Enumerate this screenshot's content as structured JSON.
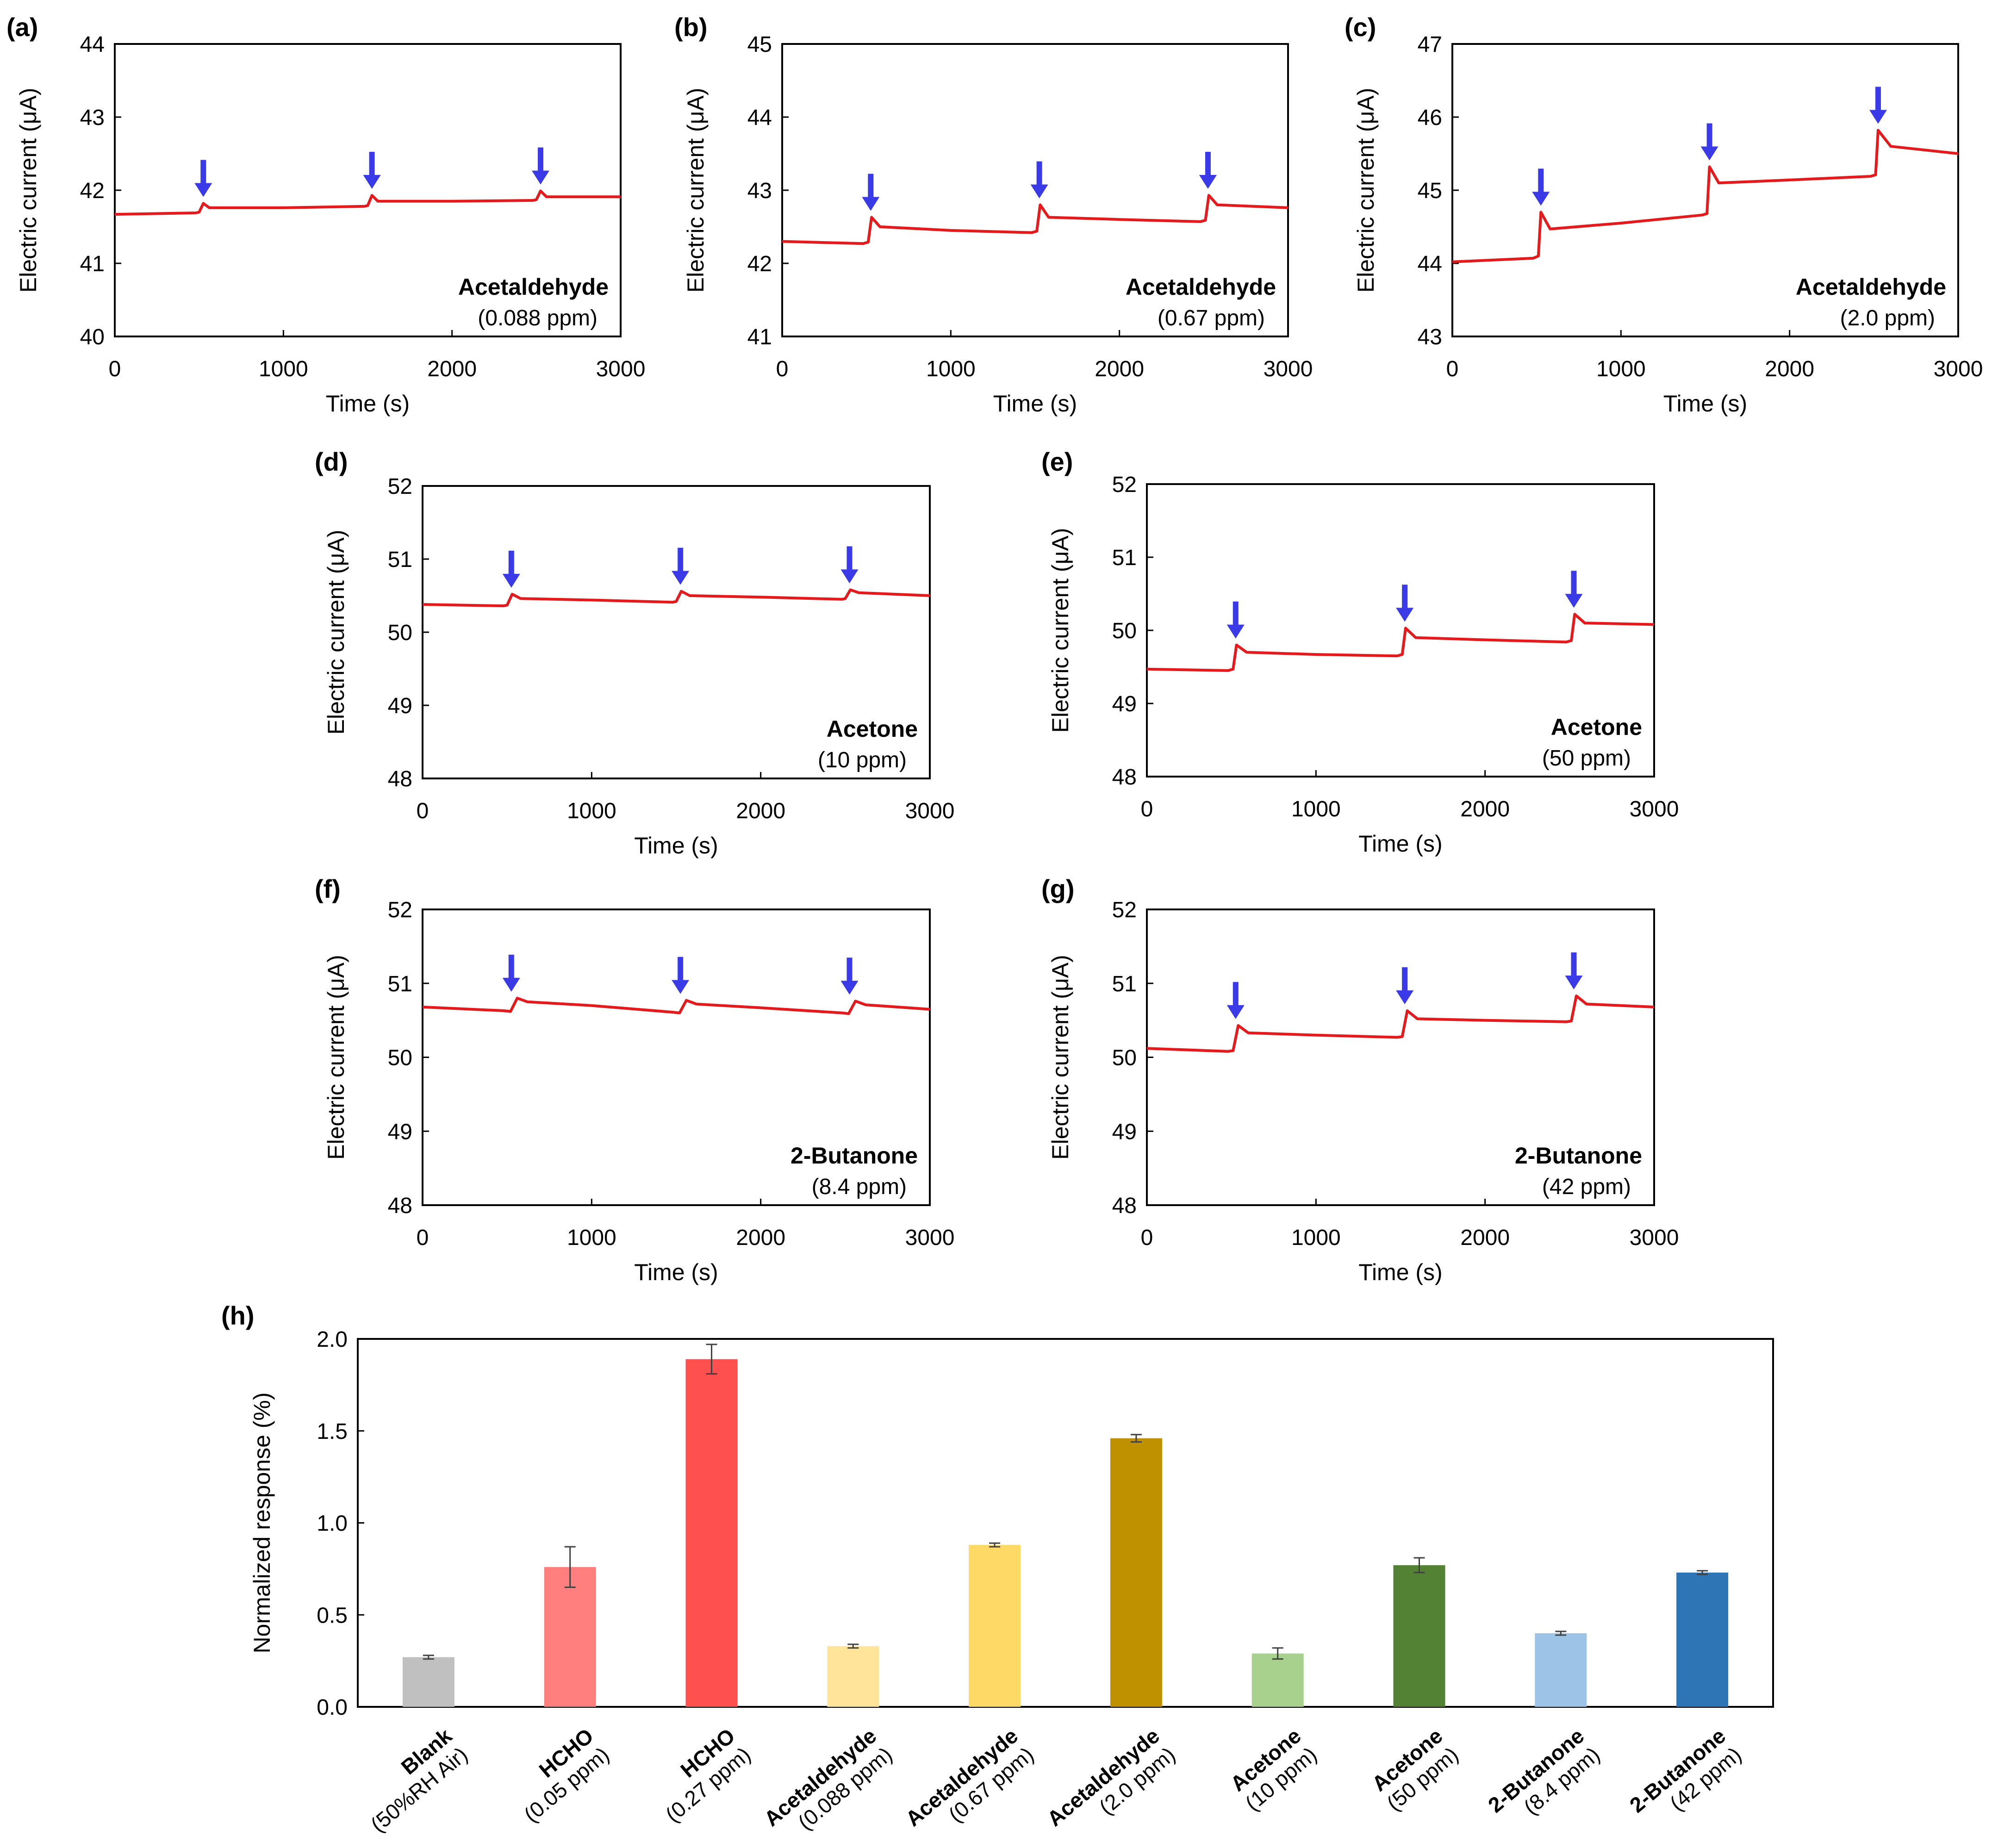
{
  "colors": {
    "trace": "#e41a1c",
    "arrow": "#3a3ae6",
    "frame": "#000000"
  },
  "chart_data": [
    {
      "type": "line",
      "panel": "(a)",
      "xlabel": "Time (s)",
      "ylabel": "Electric current (μA)",
      "xlim": [
        0,
        3000
      ],
      "ylim": [
        40,
        44
      ],
      "xticks": [
        0,
        1000,
        2000,
        3000
      ],
      "yticks": [
        40,
        41,
        42,
        43,
        44
      ],
      "annotation_title": "Acetaldehyde",
      "annotation_sub": "(0.088 ppm)",
      "exposure_times": [
        500,
        1500,
        2500
      ],
      "series": [
        {
          "name": "Acetaldehyde (0.088 ppm)",
          "x": [
            0,
            480,
            500,
            525,
            560,
            1000,
            1480,
            1500,
            1525,
            1560,
            2000,
            2480,
            2500,
            2525,
            2560,
            3000
          ],
          "y": [
            41.67,
            41.69,
            41.7,
            41.82,
            41.76,
            41.76,
            41.78,
            41.79,
            41.93,
            41.85,
            41.85,
            41.86,
            41.87,
            41.99,
            41.91,
            41.91
          ]
        }
      ]
    },
    {
      "type": "line",
      "panel": "(b)",
      "xlabel": "Time (s)",
      "ylabel": "Electric current (μA)",
      "xlim": [
        0,
        3000
      ],
      "ylim": [
        41,
        45
      ],
      "xticks": [
        0,
        1000,
        2000,
        3000
      ],
      "yticks": [
        41,
        42,
        43,
        44,
        45
      ],
      "annotation_title": "Acetaldehyde",
      "annotation_sub": "(0.67 ppm)",
      "exposure_times": [
        500,
        1500,
        2500
      ],
      "series": [
        {
          "name": "Acetaldehyde (0.67 ppm)",
          "x": [
            0,
            480,
            510,
            530,
            580,
            1000,
            1480,
            1510,
            1530,
            1580,
            2000,
            2480,
            2510,
            2530,
            2580,
            3000
          ],
          "y": [
            42.3,
            42.27,
            42.29,
            42.63,
            42.5,
            42.45,
            42.42,
            42.44,
            42.8,
            42.63,
            42.6,
            42.57,
            42.59,
            42.93,
            42.8,
            42.76
          ]
        }
      ]
    },
    {
      "type": "line",
      "panel": "(c)",
      "xlabel": "Time (s)",
      "ylabel": "Electric current (μA)",
      "xlim": [
        0,
        3000
      ],
      "ylim": [
        43,
        47
      ],
      "xticks": [
        0,
        1000,
        2000,
        3000
      ],
      "yticks": [
        43,
        44,
        45,
        46,
        47
      ],
      "annotation_title": "Acetaldehyde",
      "annotation_sub": "(2.0 ppm)",
      "exposure_times": [
        500,
        1500,
        2500
      ],
      "series": [
        {
          "name": "Acetaldehyde (2.0 ppm)",
          "x": [
            0,
            480,
            510,
            525,
            580,
            1000,
            1480,
            1510,
            1525,
            1580,
            2000,
            2480,
            2510,
            2525,
            2600,
            3000
          ],
          "y": [
            44.02,
            44.07,
            44.1,
            44.7,
            44.47,
            44.55,
            44.66,
            44.68,
            45.32,
            45.1,
            45.14,
            45.19,
            45.21,
            45.82,
            45.6,
            45.5
          ]
        }
      ]
    },
    {
      "type": "line",
      "panel": "(d)",
      "xlabel": "Time (s)",
      "ylabel": "Electric current (μA)",
      "xlim": [
        0,
        3000
      ],
      "ylim": [
        48,
        52
      ],
      "xticks": [
        0,
        1000,
        2000,
        3000
      ],
      "yticks": [
        48,
        49,
        50,
        51,
        52
      ],
      "annotation_title": "Acetone",
      "annotation_sub": "(10 ppm)",
      "exposure_times": [
        500,
        1500,
        2500
      ],
      "series": [
        {
          "name": "Acetone (10 ppm)",
          "x": [
            0,
            480,
            500,
            530,
            580,
            1000,
            1480,
            1500,
            1530,
            1580,
            2000,
            2480,
            2500,
            2530,
            2580,
            3000
          ],
          "y": [
            50.38,
            50.36,
            50.37,
            50.52,
            50.46,
            50.44,
            50.41,
            50.42,
            50.56,
            50.5,
            50.48,
            50.45,
            50.46,
            50.58,
            50.54,
            50.5
          ]
        }
      ]
    },
    {
      "type": "line",
      "panel": "(e)",
      "xlabel": "Time (s)",
      "ylabel": "Electric current (μA)",
      "xlim": [
        0,
        3000
      ],
      "ylim": [
        48,
        52
      ],
      "xticks": [
        0,
        1000,
        2000,
        3000
      ],
      "yticks": [
        48,
        49,
        50,
        51,
        52
      ],
      "annotation_title": "Acetone",
      "annotation_sub": "(50 ppm)",
      "exposure_times": [
        500,
        1500,
        2500
      ],
      "series": [
        {
          "name": "Acetone (50 ppm)",
          "x": [
            0,
            480,
            510,
            530,
            590,
            1000,
            1480,
            1510,
            1530,
            1590,
            2000,
            2480,
            2510,
            2530,
            2590,
            3000
          ],
          "y": [
            49.47,
            49.45,
            49.47,
            49.8,
            49.7,
            49.67,
            49.65,
            49.67,
            50.03,
            49.9,
            49.87,
            49.84,
            49.86,
            50.22,
            50.1,
            50.08
          ]
        }
      ]
    },
    {
      "type": "line",
      "panel": "(f)",
      "xlabel": "Time (s)",
      "ylabel": "Electric current (μA)",
      "xlim": [
        0,
        3000
      ],
      "ylim": [
        48,
        52
      ],
      "xticks": [
        0,
        1000,
        2000,
        3000
      ],
      "yticks": [
        48,
        49,
        50,
        51,
        52
      ],
      "annotation_title": "2-Butanone",
      "annotation_sub": "(8.4 ppm)",
      "exposure_times": [
        500,
        1500,
        2500
      ],
      "series": [
        {
          "name": "2-Butanone (8.4 ppm)",
          "x": [
            0,
            480,
            520,
            560,
            620,
            1000,
            1480,
            1520,
            1560,
            1620,
            2000,
            2480,
            2520,
            2560,
            2620,
            3000
          ],
          "y": [
            50.68,
            50.63,
            50.62,
            50.8,
            50.75,
            50.7,
            50.61,
            50.6,
            50.77,
            50.72,
            50.67,
            50.6,
            50.59,
            50.76,
            50.71,
            50.65
          ]
        }
      ]
    },
    {
      "type": "line",
      "panel": "(g)",
      "xlabel": "Time (s)",
      "ylabel": "Electric current (μA)",
      "xlim": [
        0,
        3000
      ],
      "ylim": [
        48,
        52
      ],
      "xticks": [
        0,
        1000,
        2000,
        3000
      ],
      "yticks": [
        48,
        49,
        50,
        51,
        52
      ],
      "annotation_title": "2-Butanone",
      "annotation_sub": "(42 ppm)",
      "exposure_times": [
        500,
        1500,
        2500
      ],
      "series": [
        {
          "name": "2-Butanone (42 ppm)",
          "x": [
            0,
            480,
            510,
            540,
            600,
            1000,
            1480,
            1510,
            1540,
            1600,
            2000,
            2480,
            2510,
            2540,
            2600,
            3000
          ],
          "y": [
            50.12,
            50.08,
            50.09,
            50.43,
            50.33,
            50.3,
            50.27,
            50.28,
            50.63,
            50.52,
            50.5,
            50.48,
            50.49,
            50.83,
            50.72,
            50.68
          ]
        }
      ]
    },
    {
      "type": "bar",
      "panel": "(h)",
      "xlabel": "",
      "ylabel": "Normalized response (%)",
      "ylim": [
        0,
        2.0
      ],
      "yticks": [
        "0.0",
        "0.5",
        "1.0",
        "1.5",
        "2.0"
      ],
      "categories": [
        {
          "name": "Blank",
          "condition": "(50%RH Air)"
        },
        {
          "name": "HCHO",
          "condition": "(0.05 ppm)"
        },
        {
          "name": "HCHO",
          "condition": "(0.27 ppm)"
        },
        {
          "name": "Acetaldehyde",
          "condition": "(0.088 ppm)"
        },
        {
          "name": "Acetaldehyde",
          "condition": "(0.67 ppm)"
        },
        {
          "name": "Acetaldehyde",
          "condition": "(2.0 ppm)"
        },
        {
          "name": "Acetone",
          "condition": "(10 ppm)"
        },
        {
          "name": "Acetone",
          "condition": "(50 ppm)"
        },
        {
          "name": "2-Butanone",
          "condition": "(8.4 ppm)"
        },
        {
          "name": "2-Butanone",
          "condition": "(42 ppm)"
        }
      ],
      "values": [
        0.27,
        0.76,
        1.89,
        0.33,
        0.88,
        1.46,
        0.29,
        0.77,
        0.4,
        0.73
      ],
      "errors": [
        0.01,
        0.11,
        0.08,
        0.01,
        0.01,
        0.02,
        0.03,
        0.04,
        0.01,
        0.01
      ],
      "bar_colors": [
        "#c0c0c0",
        "#ff7f7f",
        "#ff5050",
        "#ffe49a",
        "#ffd966",
        "#bf9000",
        "#a9d18e",
        "#548235",
        "#9dc3e6",
        "#2e75b6"
      ]
    }
  ]
}
